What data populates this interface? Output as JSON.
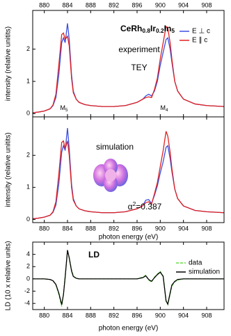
{
  "chart_data": [
    {
      "type": "line",
      "y_label": "intensity (relative unitits)",
      "x": [
        878,
        879,
        880,
        881,
        881.5,
        882,
        882.5,
        883,
        883.3,
        883.6,
        884,
        884.3,
        884.7,
        885,
        885.5,
        886,
        887,
        888,
        890,
        892,
        894,
        896,
        897,
        897.5,
        898,
        898.5,
        899,
        899.5,
        900,
        900.5,
        901,
        901.3,
        901.7,
        902,
        902.5,
        903,
        904,
        906,
        908,
        911
      ],
      "series": [
        {
          "name": "E ⊥ c",
          "color": "#3a4fe0",
          "values": [
            0.03,
            0.05,
            0.08,
            0.15,
            0.25,
            0.5,
            1.2,
            2.2,
            2.35,
            2.2,
            2.8,
            2.3,
            1.2,
            0.7,
            0.45,
            0.35,
            0.28,
            0.25,
            0.22,
            0.22,
            0.25,
            0.35,
            0.45,
            0.55,
            0.6,
            0.55,
            0.7,
            1.0,
            1.5,
            1.9,
            2.3,
            2.35,
            2.0,
            1.6,
            1.0,
            0.7,
            0.45,
            0.3,
            0.25,
            0.22
          ]
        },
        {
          "name": "E ∥ c",
          "color": "#e02020",
          "values": [
            0.03,
            0.05,
            0.08,
            0.15,
            0.27,
            0.6,
            1.5,
            2.45,
            2.5,
            2.3,
            2.4,
            2.1,
            1.1,
            0.65,
            0.45,
            0.35,
            0.28,
            0.25,
            0.22,
            0.22,
            0.25,
            0.35,
            0.45,
            0.5,
            0.52,
            0.5,
            0.75,
            1.1,
            1.7,
            2.2,
            2.7,
            2.65,
            2.2,
            1.7,
            1.0,
            0.7,
            0.45,
            0.3,
            0.25,
            0.22
          ]
        }
      ],
      "xlim": [
        878,
        911
      ],
      "xticks": [
        880,
        884,
        888,
        892,
        896,
        900,
        904,
        908
      ],
      "ylim": [
        -0.1,
        3.2
      ],
      "yticks": [
        0,
        1,
        2
      ],
      "annotations": [
        [
          "CeRh",
          "0.8",
          "Ir",
          "0.2",
          "In",
          "5"
        ],
        [
          "experiment"
        ],
        [
          "TEY"
        ],
        [
          "M",
          "5"
        ],
        [
          "M",
          "4"
        ]
      ]
    },
    {
      "type": "line",
      "y_label": "intensity (relative unitits)",
      "x_label": "photon energy (eV)",
      "x": [
        878,
        879,
        880,
        881,
        881.5,
        882,
        882.5,
        883,
        883.3,
        883.6,
        884,
        884.3,
        884.7,
        885,
        885.5,
        886,
        887,
        888,
        890,
        892,
        894,
        896,
        897,
        897.5,
        898,
        898.5,
        899,
        899.5,
        900,
        900.5,
        901,
        901.3,
        901.7,
        902,
        902.5,
        903,
        904,
        906,
        908,
        911
      ],
      "series": [
        {
          "name": "E ⊥ c",
          "color": "#3a4fe0",
          "values": [
            0.02,
            0.04,
            0.07,
            0.13,
            0.22,
            0.45,
            1.1,
            2.1,
            2.3,
            2.15,
            2.85,
            2.2,
            1.1,
            0.65,
            0.42,
            0.33,
            0.27,
            0.24,
            0.21,
            0.21,
            0.24,
            0.33,
            0.43,
            0.6,
            0.62,
            0.5,
            0.75,
            1.05,
            1.45,
            1.8,
            2.25,
            2.3,
            1.9,
            1.5,
            0.95,
            0.65,
            0.42,
            0.28,
            0.24,
            0.21
          ]
        },
        {
          "name": "E ∥ c",
          "color": "#e02020",
          "values": [
            0.02,
            0.04,
            0.07,
            0.13,
            0.24,
            0.55,
            1.4,
            2.4,
            2.45,
            2.2,
            2.45,
            2.0,
            1.0,
            0.6,
            0.42,
            0.33,
            0.27,
            0.24,
            0.21,
            0.21,
            0.24,
            0.33,
            0.43,
            0.52,
            0.55,
            0.48,
            0.8,
            1.15,
            1.65,
            2.15,
            2.75,
            2.6,
            2.1,
            1.6,
            0.95,
            0.65,
            0.42,
            0.28,
            0.24,
            0.21
          ]
        }
      ],
      "xlim": [
        878,
        911
      ],
      "xticks": [
        880,
        884,
        888,
        892,
        896,
        900,
        904,
        908
      ],
      "ylim": [
        -0.1,
        3.2
      ],
      "yticks": [
        0,
        1,
        2
      ],
      "annotations": [
        [
          "simulation"
        ],
        [
          "α",
          "2",
          "=0.387"
        ]
      ]
    },
    {
      "type": "line",
      "y_label": "LD (10 x relative units)",
      "x_label": "photon energy (eV)",
      "x": [
        878,
        879,
        880,
        881,
        881.5,
        882,
        882.5,
        883,
        883.3,
        883.6,
        884,
        884.3,
        884.7,
        885,
        885.5,
        886,
        887,
        888,
        890,
        892,
        894,
        896,
        897,
        897.5,
        898,
        898.5,
        899,
        899.5,
        900,
        900.5,
        901,
        901.3,
        901.7,
        902,
        902.5,
        903,
        904,
        906,
        908,
        911
      ],
      "series": [
        {
          "name": "data",
          "color": "#66dd44",
          "dashed": true,
          "values": [
            0,
            0,
            0,
            -0.1,
            -0.3,
            -1,
            -2.5,
            -4.5,
            -2.5,
            0.5,
            4.5,
            3.5,
            1.5,
            0.5,
            0.1,
            0,
            0,
            0,
            0,
            0,
            0,
            0,
            0.3,
            0.6,
            -0.2,
            -0.5,
            0.3,
            0.8,
            1.2,
            0.5,
            -3.5,
            -4.2,
            -2.5,
            -1.2,
            -0.5,
            -0.2,
            0,
            0,
            0,
            0
          ]
        },
        {
          "name": "simulation",
          "color": "#000000",
          "values": [
            0,
            0,
            0,
            -0.1,
            -0.3,
            -0.9,
            -2.3,
            -4.2,
            -2.6,
            0.3,
            4.7,
            3.4,
            1.3,
            0.4,
            0.1,
            0,
            0,
            0,
            0,
            0,
            0,
            0,
            0.2,
            0.5,
            -0.1,
            -0.4,
            0.2,
            0.7,
            1.1,
            0.4,
            -3.6,
            -4.1,
            -2.3,
            -1.0,
            -0.4,
            -0.1,
            0,
            0,
            0,
            0
          ]
        }
      ],
      "xlim": [
        878,
        911
      ],
      "xticks": [
        880,
        884,
        888,
        892,
        896,
        900,
        904,
        908
      ],
      "ylim": [
        -5,
        6
      ],
      "yticks": [
        -4,
        -2,
        0,
        2,
        4
      ],
      "annotations": [
        [
          "LD"
        ]
      ]
    }
  ]
}
